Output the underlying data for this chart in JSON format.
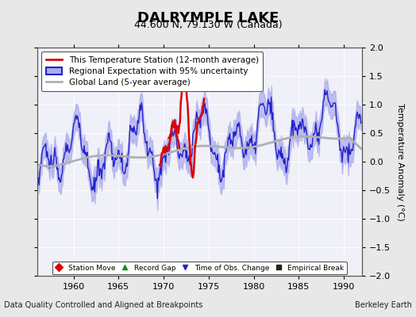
{
  "title": "DALRYMPLE LAKE",
  "subtitle": "44.600 N, 79.130 W (Canada)",
  "xlabel_left": "Data Quality Controlled and Aligned at Breakpoints",
  "xlabel_right": "Berkeley Earth",
  "ylabel": "Temperature Anomaly (°C)",
  "xlim": [
    1956,
    1992
  ],
  "ylim": [
    -2,
    2
  ],
  "yticks": [
    -2,
    -1.5,
    -1,
    -0.5,
    0,
    0.5,
    1,
    1.5,
    2
  ],
  "xticks": [
    1960,
    1965,
    1970,
    1975,
    1980,
    1985,
    1990
  ],
  "bg_color": "#e8e8e8",
  "plot_bg_color": "#f0f0f8",
  "regional_color": "#2222cc",
  "regional_fill_color": "#aaaaee",
  "station_color": "#dd0000",
  "global_color": "#aaaaaa",
  "legend_items": [
    {
      "label": "This Temperature Station (12-month average)",
      "color": "#dd0000",
      "lw": 2
    },
    {
      "label": "Regional Expectation with 95% uncertainty",
      "color": "#2222cc",
      "lw": 1.5
    },
    {
      "label": "Global Land (5-year average)",
      "color": "#aaaaaa",
      "lw": 2
    }
  ],
  "bottom_legend": [
    {
      "label": "Station Move",
      "color": "#dd0000",
      "marker": "D"
    },
    {
      "label": "Record Gap",
      "color": "#228822",
      "marker": "^"
    },
    {
      "label": "Time of Obs. Change",
      "color": "#2222cc",
      "marker": "v"
    },
    {
      "label": "Empirical Break",
      "color": "#222222",
      "marker": "s"
    }
  ]
}
